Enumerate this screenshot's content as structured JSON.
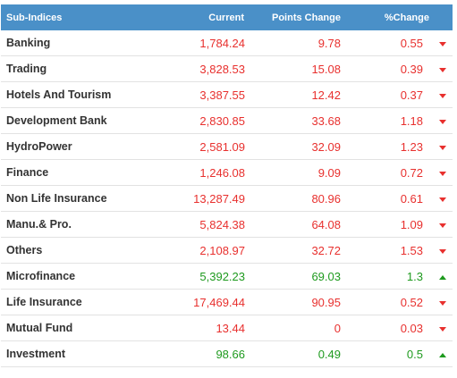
{
  "table": {
    "headers": {
      "name": "Sub-Indices",
      "current": "Current",
      "points_change": "Points Change",
      "pct_change": "%Change"
    },
    "colors": {
      "header_bg": "#4a90c8",
      "down": "#e8302e",
      "up": "#1e9a1e"
    },
    "rows": [
      {
        "name": "Banking",
        "current": "1,784.24",
        "points": "9.78",
        "pct": "0.55",
        "trend": "down",
        "icon": "triangle-down-icon"
      },
      {
        "name": "Trading",
        "current": "3,828.53",
        "points": "15.08",
        "pct": "0.39",
        "trend": "down",
        "icon": "triangle-down-icon"
      },
      {
        "name": "Hotels And Tourism",
        "current": "3,387.55",
        "points": "12.42",
        "pct": "0.37",
        "trend": "down",
        "icon": "triangle-down-icon"
      },
      {
        "name": "Development Bank",
        "current": "2,830.85",
        "points": "33.68",
        "pct": "1.18",
        "trend": "down",
        "icon": "triangle-down-icon"
      },
      {
        "name": "HydroPower",
        "current": "2,581.09",
        "points": "32.09",
        "pct": "1.23",
        "trend": "down",
        "icon": "triangle-down-icon"
      },
      {
        "name": "Finance",
        "current": "1,246.08",
        "points": "9.09",
        "pct": "0.72",
        "trend": "down",
        "icon": "triangle-down-icon"
      },
      {
        "name": "Non Life Insurance",
        "current": "13,287.49",
        "points": "80.96",
        "pct": "0.61",
        "trend": "down",
        "icon": "triangle-down-icon"
      },
      {
        "name": "Manu.& Pro.",
        "current": "5,824.38",
        "points": "64.08",
        "pct": "1.09",
        "trend": "down",
        "icon": "triangle-down-icon"
      },
      {
        "name": "Others",
        "current": "2,108.97",
        "points": "32.72",
        "pct": "1.53",
        "trend": "down",
        "icon": "triangle-down-icon"
      },
      {
        "name": "Microfinance",
        "current": "5,392.23",
        "points": "69.03",
        "pct": "1.3",
        "trend": "up",
        "icon": "triangle-up-icon"
      },
      {
        "name": "Life Insurance",
        "current": "17,469.44",
        "points": "90.95",
        "pct": "0.52",
        "trend": "down",
        "icon": "triangle-down-icon"
      },
      {
        "name": "Mutual Fund",
        "current": "13.44",
        "points": "0",
        "pct": "0.03",
        "trend": "down",
        "icon": "triangle-down-icon"
      },
      {
        "name": "Investment",
        "current": "98.66",
        "points": "0.49",
        "pct": "0.5",
        "trend": "up",
        "icon": "triangle-up-icon"
      }
    ]
  }
}
